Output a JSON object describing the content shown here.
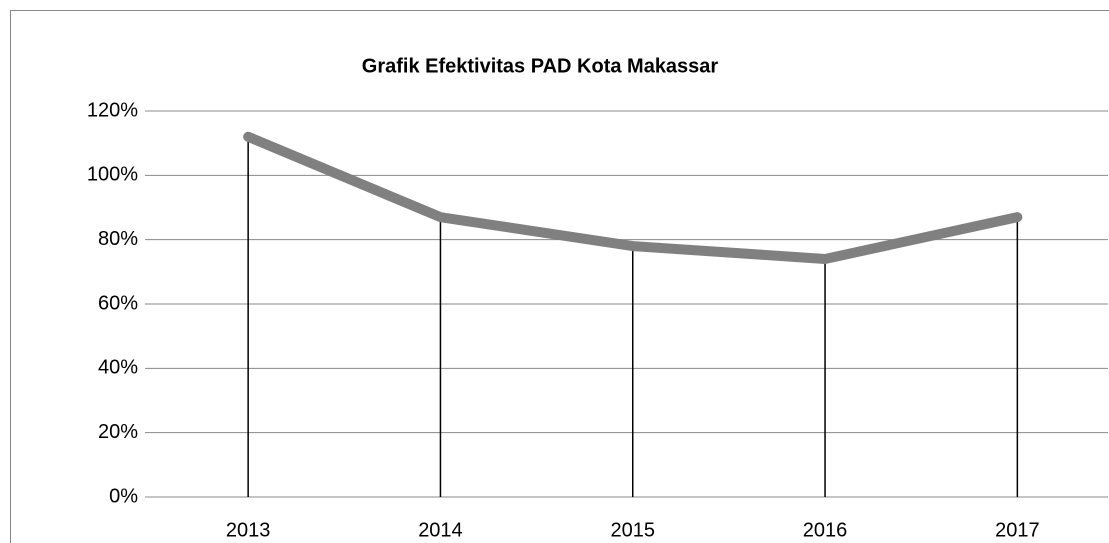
{
  "chart_data": {
    "type": "line",
    "title": "Grafik Efektivitas PAD Kota Makassar",
    "categories": [
      "2013",
      "2014",
      "2015",
      "2016",
      "2017"
    ],
    "values": [
      112,
      87,
      78,
      74,
      87
    ],
    "color": "#808080",
    "drop_lines": true,
    "ylim": [
      0,
      120
    ],
    "yticks": [
      {
        "value": 0,
        "label": "0%"
      },
      {
        "value": 20,
        "label": "20%"
      },
      {
        "value": 40,
        "label": "40%"
      },
      {
        "value": 60,
        "label": "60%"
      },
      {
        "value": 80,
        "label": "80%"
      },
      {
        "value": 100,
        "label": "100%"
      },
      {
        "value": 120,
        "label": "120%"
      }
    ],
    "grid": true
  }
}
